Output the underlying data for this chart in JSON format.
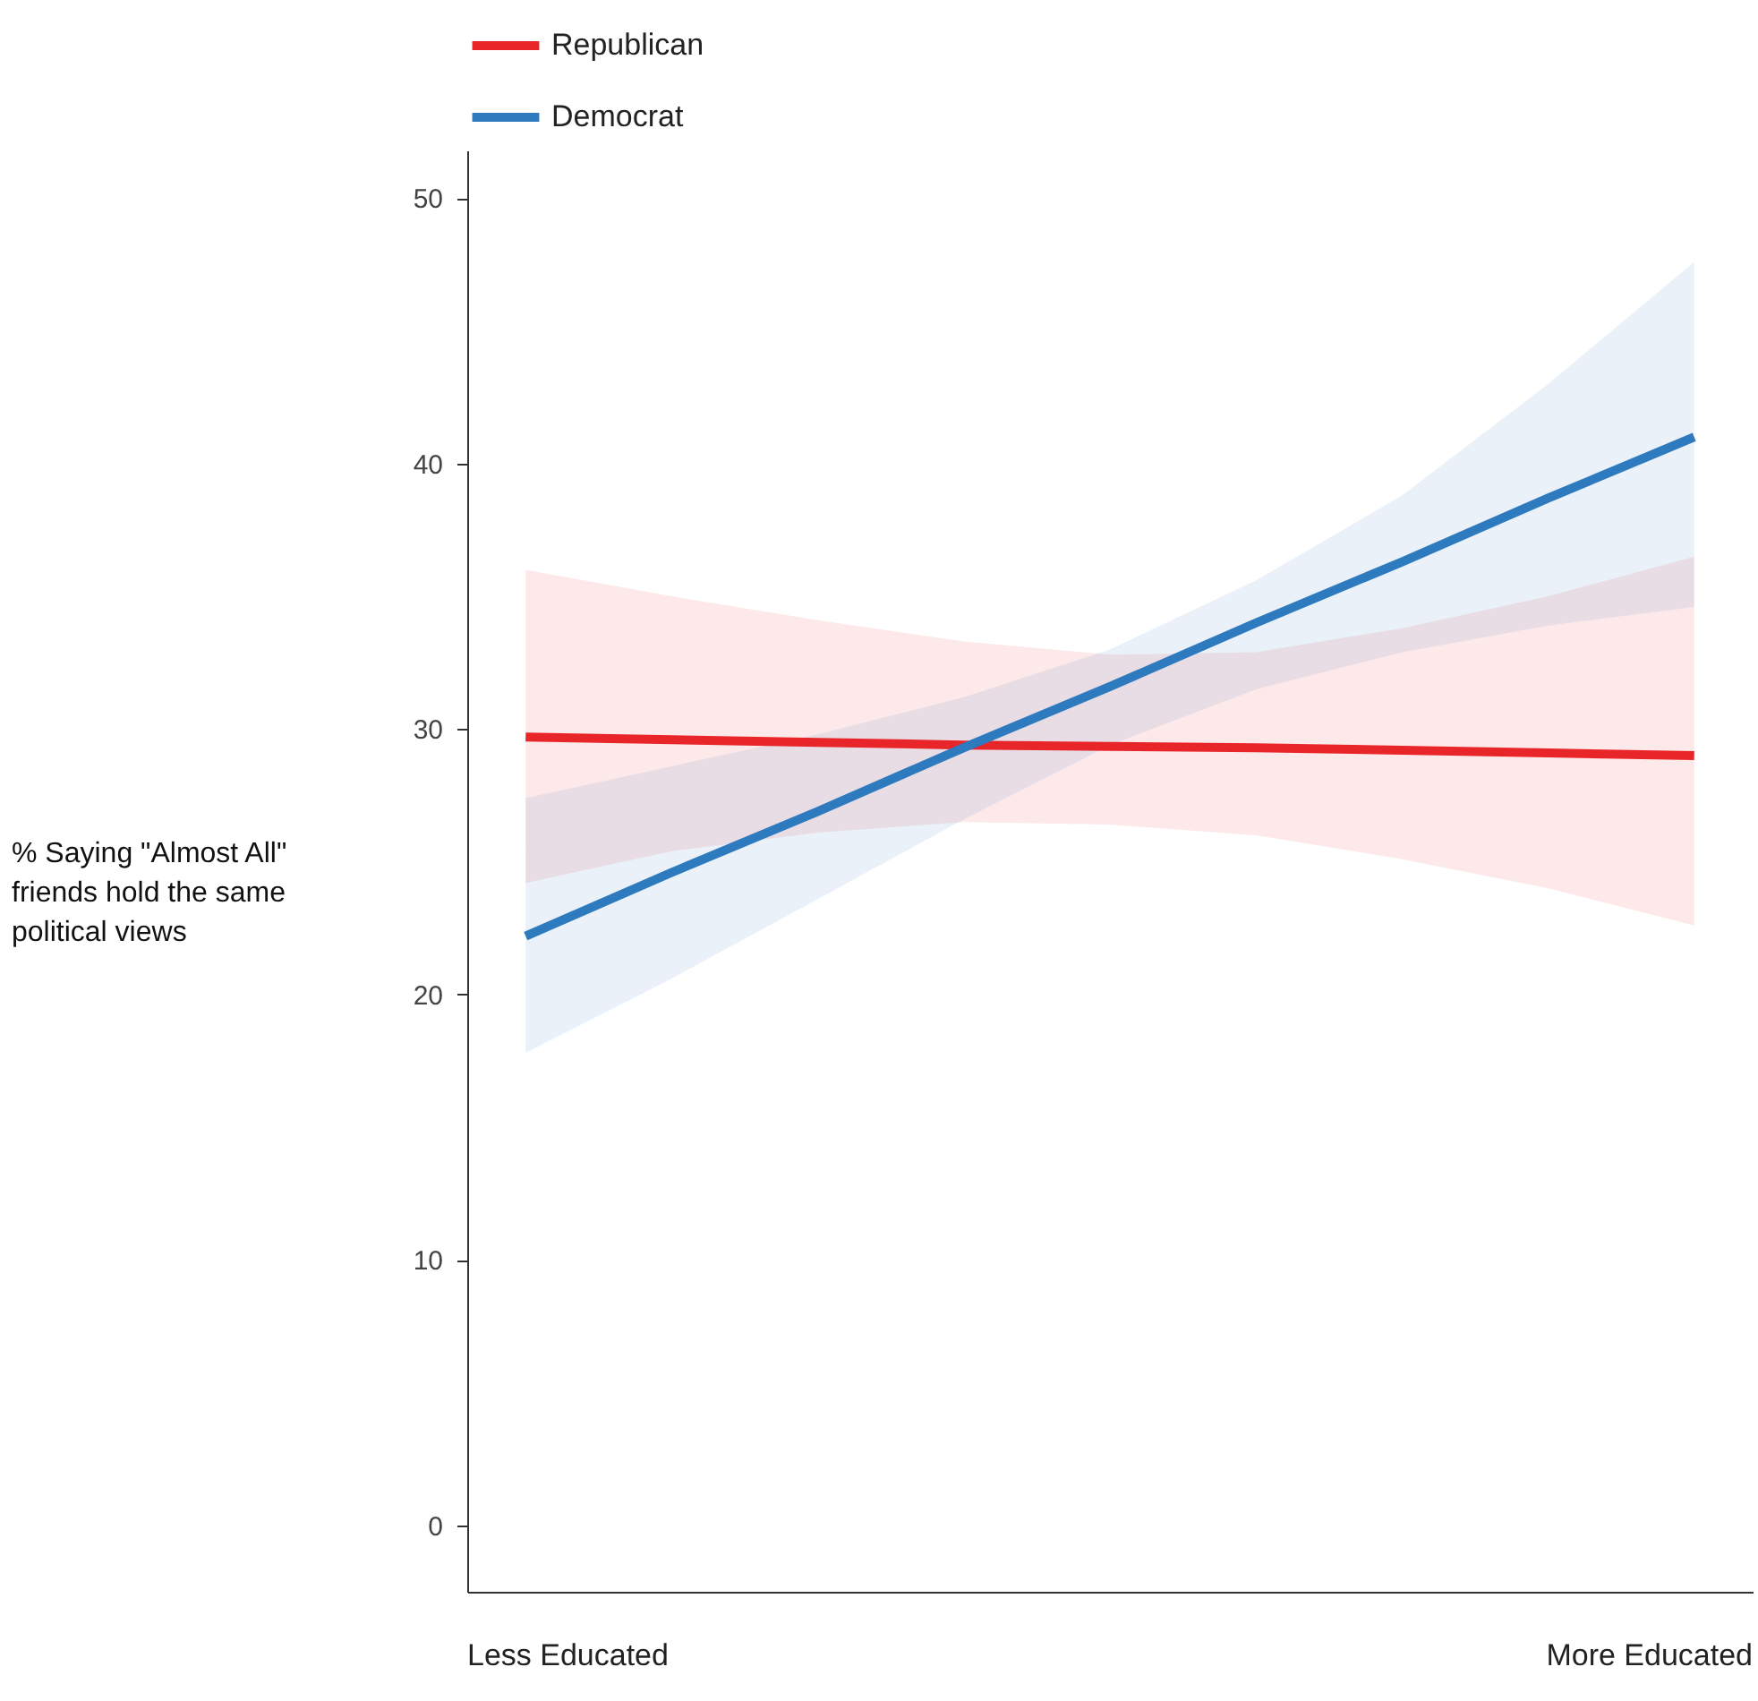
{
  "chart_data": {
    "type": "line",
    "ylabel": "% Saying \"Almost All\" friends hold the same political views",
    "categories": [
      null,
      null,
      null,
      null,
      null,
      null,
      null,
      null,
      null
    ],
    "annotations": [
      "Less Educated",
      "More Educated"
    ],
    "series": [
      {
        "name": "Republican",
        "color": "#e8262a",
        "values": [
          29.7,
          29.6,
          29.5,
          29.4,
          29.35,
          29.3,
          29.2,
          29.1,
          29.0
        ],
        "lower": [
          24.2,
          25.4,
          26.1,
          26.5,
          26.4,
          26.0,
          25.1,
          24.0,
          22.6
        ],
        "upper": [
          36.0,
          35.0,
          34.1,
          33.3,
          32.8,
          32.9,
          33.8,
          35.0,
          36.5
        ]
      },
      {
        "name": "Democrat",
        "color": "#2e7abf",
        "values": [
          22.2,
          24.6,
          26.9,
          29.3,
          31.6,
          34.0,
          36.3,
          38.7,
          41.0
        ],
        "lower": [
          17.8,
          20.6,
          23.6,
          26.6,
          29.4,
          31.5,
          32.9,
          33.9,
          34.6
        ],
        "upper": [
          27.4,
          28.6,
          29.8,
          31.2,
          33.0,
          35.6,
          38.8,
          43.0,
          47.6
        ]
      }
    ],
    "ylim": [
      -2.5,
      51.8
    ],
    "yticks": [
      0,
      10,
      20,
      30,
      40,
      50
    ],
    "grid": false,
    "legend": "top left",
    "marker": "none",
    "line_style": "solid"
  }
}
